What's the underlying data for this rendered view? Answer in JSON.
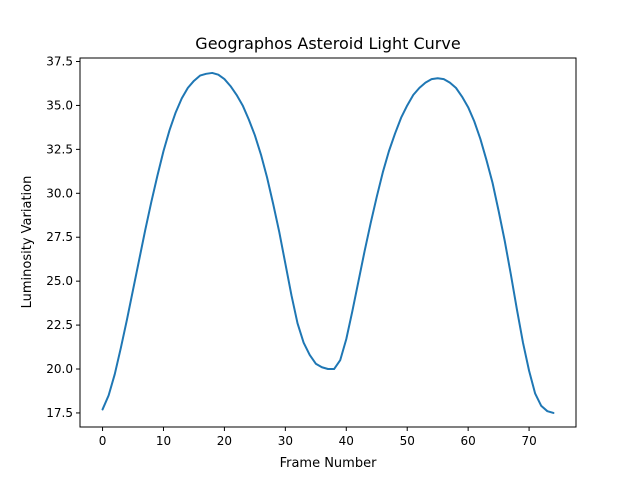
{
  "chart_data": {
    "type": "line",
    "title": "Geographos Asteroid Light Curve",
    "xlabel": "Frame Number",
    "ylabel": "Luminosity Variation",
    "xlim": [
      -3.7,
      77.7
    ],
    "ylim": [
      16.7,
      37.7
    ],
    "xticks": [
      0,
      10,
      20,
      30,
      40,
      50,
      60,
      70
    ],
    "yticks": [
      17.5,
      20.0,
      22.5,
      25.0,
      27.5,
      30.0,
      32.5,
      35.0,
      37.5
    ],
    "ytick_labels": [
      "17.5",
      "20.0",
      "22.5",
      "25.0",
      "27.5",
      "30.0",
      "32.5",
      "35.0",
      "37.5"
    ],
    "grid": false,
    "line_color": "#1f77b4",
    "x": [
      0,
      1,
      2,
      3,
      4,
      5,
      6,
      7,
      8,
      9,
      10,
      11,
      12,
      13,
      14,
      15,
      16,
      17,
      18,
      19,
      20,
      21,
      22,
      23,
      24,
      25,
      26,
      27,
      28,
      29,
      30,
      31,
      32,
      33,
      34,
      35,
      36,
      37,
      38,
      39,
      40,
      41,
      42,
      43,
      44,
      45,
      46,
      47,
      48,
      49,
      50,
      51,
      52,
      53,
      54,
      55,
      56,
      57,
      58,
      59,
      60,
      61,
      62,
      63,
      64,
      65,
      66,
      67,
      68,
      69,
      70,
      71,
      72,
      73,
      74
    ],
    "y": [
      17.7,
      18.5,
      19.7,
      21.2,
      22.8,
      24.5,
      26.2,
      27.9,
      29.5,
      31.0,
      32.4,
      33.6,
      34.6,
      35.4,
      36.0,
      36.4,
      36.7,
      36.8,
      36.85,
      36.75,
      36.5,
      36.1,
      35.6,
      35.0,
      34.2,
      33.3,
      32.2,
      30.9,
      29.4,
      27.8,
      26.0,
      24.2,
      22.6,
      21.5,
      20.8,
      20.3,
      20.1,
      20.0,
      20.0,
      20.5,
      21.7,
      23.3,
      25.0,
      26.7,
      28.3,
      29.8,
      31.2,
      32.4,
      33.4,
      34.3,
      35.0,
      35.6,
      36.0,
      36.3,
      36.5,
      36.55,
      36.5,
      36.3,
      36.0,
      35.5,
      34.9,
      34.1,
      33.1,
      31.9,
      30.6,
      29.0,
      27.3,
      25.4,
      23.4,
      21.5,
      19.9,
      18.6,
      17.9,
      17.6,
      17.5
    ]
  }
}
